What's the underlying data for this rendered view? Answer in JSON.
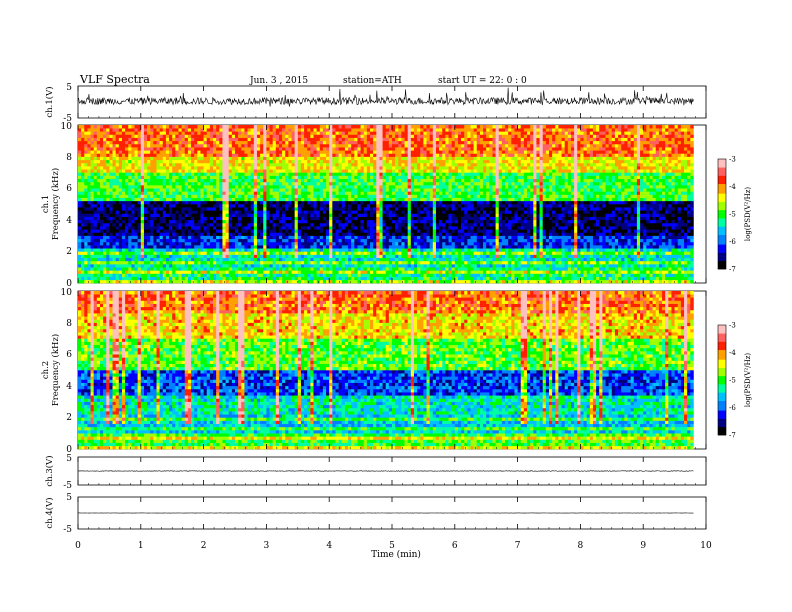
{
  "header": {
    "title": "VLF Spectra",
    "date": "Jun. 3 , 2015",
    "station": "station=ATH",
    "start": "start UT = 22: 0 : 0"
  },
  "xaxis": {
    "label": "Time (min)",
    "ticks": [
      "0",
      "1",
      "2",
      "3",
      "4",
      "5",
      "6",
      "7",
      "8",
      "9",
      "10"
    ],
    "range": [
      0,
      10
    ],
    "data_end": 9.8
  },
  "panels": {
    "ch1": {
      "ylabel": "ch.1(V)",
      "ticks": [
        "5",
        "-5"
      ],
      "range": [
        -5,
        5
      ]
    },
    "ch1_spec": {
      "ylabel_ch": "ch.1",
      "ylabel": "Frequency (kHz)",
      "ticks": [
        "0",
        "2",
        "4",
        "6",
        "8",
        "10"
      ],
      "range": [
        0,
        10
      ]
    },
    "ch2_spec": {
      "ylabel_ch": "ch.2",
      "ylabel": "Frequency (kHz)",
      "ticks": [
        "0",
        "2",
        "4",
        "6",
        "8",
        "10"
      ],
      "range": [
        0,
        10
      ]
    },
    "ch3": {
      "ylabel": "ch.3(V)",
      "ticks": [
        "5",
        "-5"
      ],
      "range": [
        -5,
        5
      ]
    },
    "ch4": {
      "ylabel": "ch.4(V)",
      "ticks": [
        "5",
        "-5"
      ],
      "range": [
        -5,
        5
      ]
    }
  },
  "colorbar": {
    "label": "log(PSD(V²/Hz)",
    "ticks": [
      "-3",
      "-4",
      "-5",
      "-6",
      "-7"
    ],
    "range": [
      -7,
      -3
    ],
    "colors": [
      "#000000",
      "#000080",
      "#0000ff",
      "#0080ff",
      "#00c0ff",
      "#00ffa0",
      "#00ff00",
      "#a0ff00",
      "#ffff00",
      "#ffa000",
      "#ff2000",
      "#ff6060",
      "#ffc0c0"
    ]
  },
  "chart_data": [
    {
      "type": "line",
      "title": "VLF Spectra",
      "ylabel": "ch.1(V)",
      "xlabel": "Time (min)",
      "xlim": [
        0,
        10
      ],
      "ylim": [
        -5,
        5
      ],
      "description_level": {
        "mean_V": 0.3,
        "noise_band_V": [
          -1.3,
          1.8
        ]
      }
    },
    {
      "type": "heatmap",
      "ylabel": "Frequency (kHz)",
      "xlabel": "Time (min)",
      "xlim": [
        0,
        9.8
      ],
      "ylim": [
        0,
        10
      ],
      "zlim": [
        -7,
        -3
      ],
      "bands": [
        {
          "f_kHz": [
            0,
            1
          ],
          "log_psd": -5.2
        },
        {
          "f_kHz": [
            1,
            2.2
          ],
          "log_psd": -5.4
        },
        {
          "f_kHz": [
            2.2,
            3
          ],
          "log_psd": -6.2
        },
        {
          "f_kHz": [
            3,
            5.2
          ],
          "log_psd": -6.6
        },
        {
          "f_kHz": [
            5.2,
            7
          ],
          "log_psd": -5.0
        },
        {
          "f_kHz": [
            7,
            8
          ],
          "log_psd": -4.4
        },
        {
          "f_kHz": [
            8,
            10
          ],
          "log_psd": -3.9
        }
      ]
    },
    {
      "type": "heatmap",
      "ylabel": "Frequency (kHz)",
      "xlabel": "Time (min)",
      "xlim": [
        0,
        9.8
      ],
      "ylim": [
        0,
        10
      ],
      "zlim": [
        -7,
        -3
      ],
      "bands": [
        {
          "f_kHz": [
            0,
            1
          ],
          "log_psd": -5.0
        },
        {
          "f_kHz": [
            1,
            2.2
          ],
          "log_psd": -5.6
        },
        {
          "f_kHz": [
            2.2,
            3.4
          ],
          "log_psd": -5.4
        },
        {
          "f_kHz": [
            3.4,
            5
          ],
          "log_psd": -6.1
        },
        {
          "f_kHz": [
            5,
            7
          ],
          "log_psd": -4.9
        },
        {
          "f_kHz": [
            7,
            8.5
          ],
          "log_psd": -4.3
        },
        {
          "f_kHz": [
            8.5,
            10
          ],
          "log_psd": -3.9
        }
      ]
    },
    {
      "type": "line",
      "ylabel": "ch.3(V)",
      "xlabel": "Time (min)",
      "xlim": [
        0,
        10
      ],
      "ylim": [
        -5,
        5
      ],
      "description_level": {
        "mean_V": 0.0
      }
    },
    {
      "type": "line",
      "ylabel": "ch.4(V)",
      "xlabel": "Time (min)",
      "xlim": [
        0,
        10
      ],
      "ylim": [
        -5,
        5
      ],
      "description_level": {
        "mean_V": 0.0
      }
    }
  ]
}
